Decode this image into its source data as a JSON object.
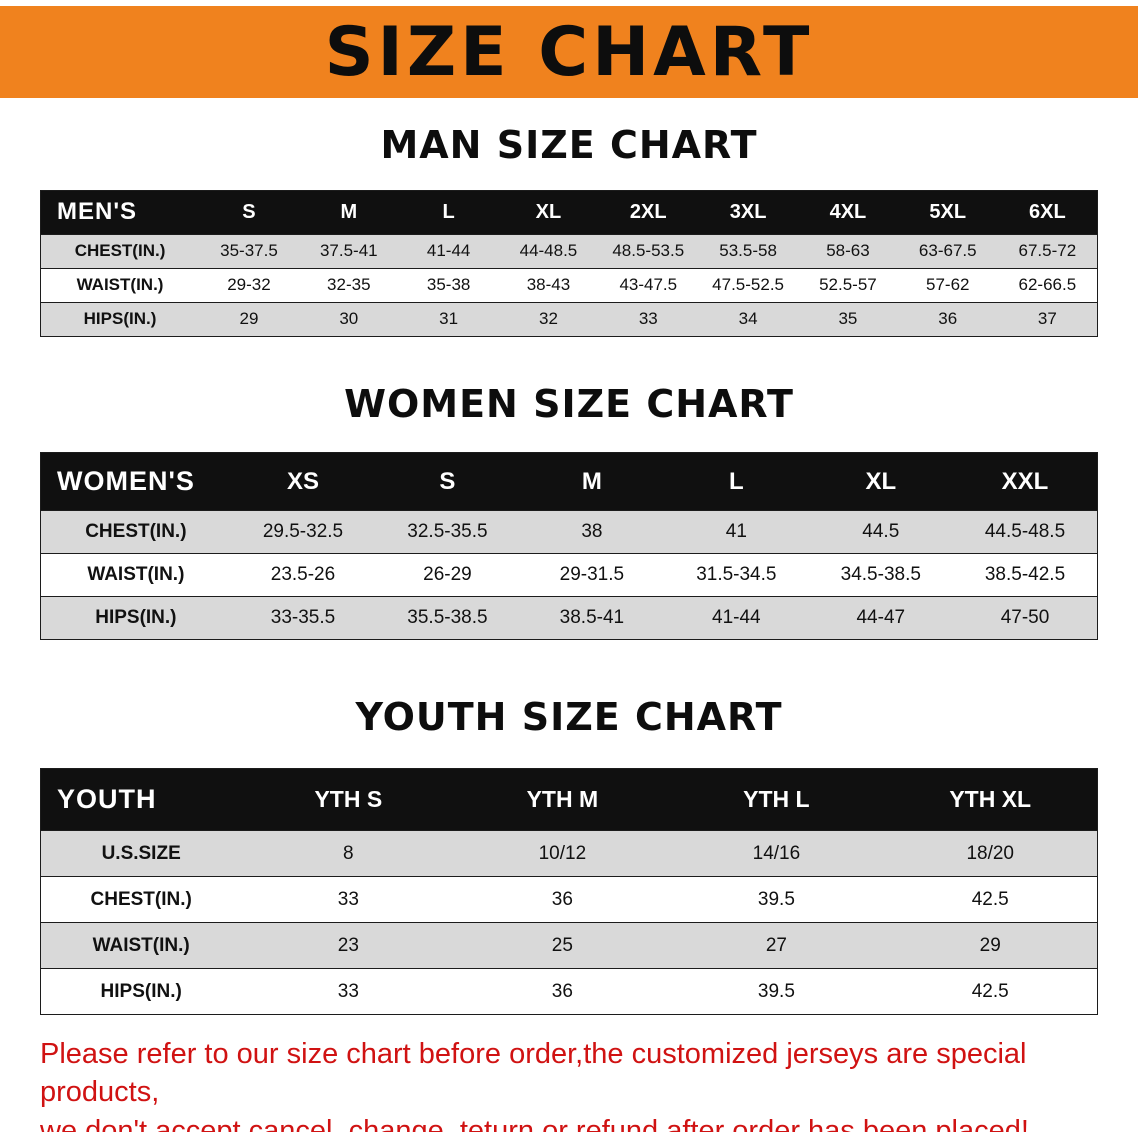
{
  "banner": {
    "title": "SIZE CHART"
  },
  "colors": {
    "banner_bg": "#F0821E",
    "table_header_bg": "#101010",
    "alt_row_bg": "#D9D9D9",
    "notice_text": "#D01212"
  },
  "chart_data": [
    {
      "type": "table",
      "title": "MAN SIZE CHART",
      "columns": [
        "MEN'S",
        "S",
        "M",
        "L",
        "XL",
        "2XL",
        "3XL",
        "4XL",
        "5XL",
        "6XL"
      ],
      "rows": [
        [
          "CHEST(IN.)",
          "35-37.5",
          "37.5-41",
          "41-44",
          "44-48.5",
          "48.5-53.5",
          "53.5-58",
          "58-63",
          "63-67.5",
          "67.5-72"
        ],
        [
          "WAIST(IN.)",
          "29-32",
          "32-35",
          "35-38",
          "38-43",
          "43-47.5",
          "47.5-52.5",
          "52.5-57",
          "57-62",
          "62-66.5"
        ],
        [
          "HIPS(IN.)",
          "29",
          "30",
          "31",
          "32",
          "33",
          "34",
          "35",
          "36",
          "37"
        ]
      ]
    },
    {
      "type": "table",
      "title": "WOMEN SIZE CHART",
      "columns": [
        "WOMEN'S",
        "XS",
        "S",
        "M",
        "L",
        "XL",
        "XXL"
      ],
      "rows": [
        [
          "CHEST(IN.)",
          "29.5-32.5",
          "32.5-35.5",
          "38",
          "41",
          "44.5",
          "44.5-48.5"
        ],
        [
          "WAIST(IN.)",
          "23.5-26",
          "26-29",
          "29-31.5",
          "31.5-34.5",
          "34.5-38.5",
          "38.5-42.5"
        ],
        [
          "HIPS(IN.)",
          "33-35.5",
          "35.5-38.5",
          "38.5-41",
          "41-44",
          "44-47",
          "47-50"
        ]
      ]
    },
    {
      "type": "table",
      "title": "YOUTH SIZE CHART",
      "columns": [
        "YOUTH",
        "YTH S",
        "YTH M",
        "YTH L",
        "YTH XL"
      ],
      "rows": [
        [
          "U.S.SIZE",
          "8",
          "10/12",
          "14/16",
          "18/20"
        ],
        [
          "CHEST(IN.)",
          "33",
          "36",
          "39.5",
          "42.5"
        ],
        [
          "WAIST(IN.)",
          "23",
          "25",
          "27",
          "29"
        ],
        [
          "HIPS(IN.)",
          "33",
          "36",
          "39.5",
          "42.5"
        ]
      ]
    }
  ],
  "footer": {
    "line1": "Please refer to our size chart before order,the customized jerseys are special products,",
    "line2": "we don't accept cancel, change, teturn or refund after order has been placed!"
  }
}
